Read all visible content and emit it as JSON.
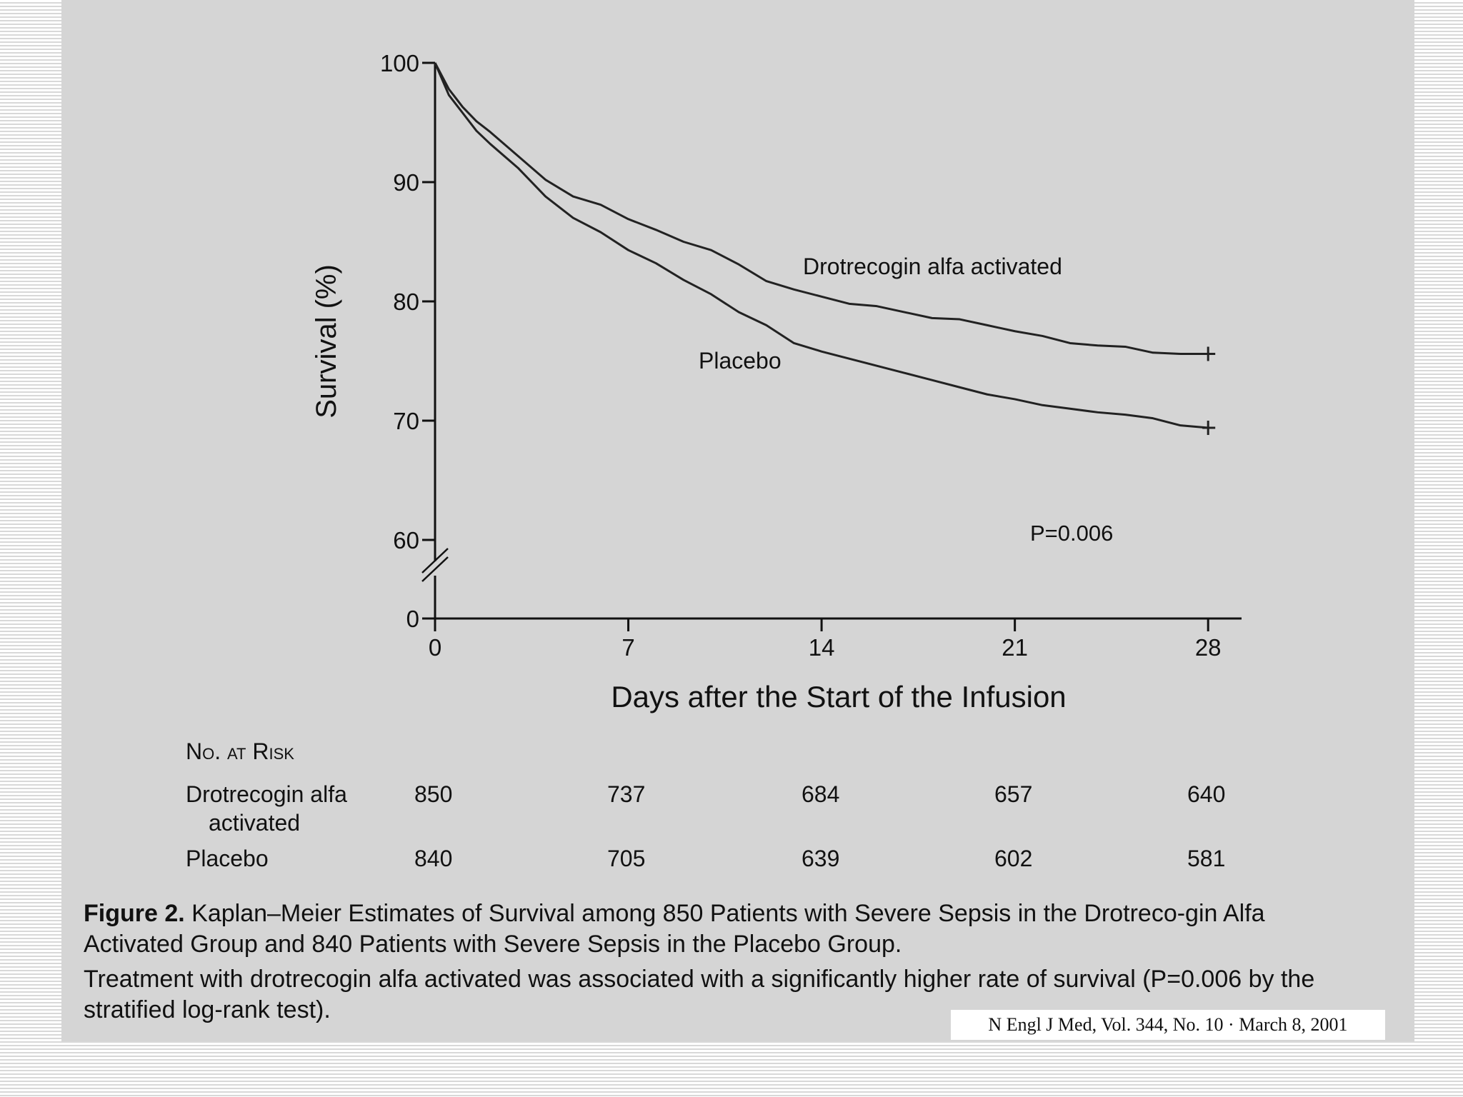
{
  "chart_data": {
    "type": "line",
    "title": "Kaplan–Meier Estimates of Survival",
    "xlabel": "Days after the Start of the Infusion",
    "ylabel": "Survival (%)",
    "x_ticks": [
      0,
      7,
      14,
      21,
      28
    ],
    "y_ticks": [
      100,
      90,
      80,
      70,
      60,
      0
    ],
    "xlim": [
      0,
      29
    ],
    "ylim": [
      0,
      100
    ],
    "axis_break": "between 0 and 60",
    "annotation": "P=0.006",
    "series": [
      {
        "name": "Drotrecogin alfa activated",
        "x": [
          0,
          0.5,
          1,
          1.5,
          2,
          3,
          4,
          5,
          6,
          7,
          8,
          9,
          10,
          11,
          12,
          13,
          14,
          15,
          16,
          17,
          18,
          19,
          20,
          21,
          22,
          23,
          24,
          25,
          26,
          27,
          28
        ],
        "y": [
          100,
          97.8,
          96.3,
          95.1,
          94.2,
          92.2,
          90.2,
          88.8,
          88.1,
          86.9,
          86.0,
          85.0,
          84.3,
          83.1,
          81.7,
          81.0,
          80.4,
          79.8,
          79.6,
          79.1,
          78.6,
          78.5,
          78.0,
          77.5,
          77.1,
          76.5,
          76.3,
          76.2,
          75.7,
          75.6,
          75.6
        ]
      },
      {
        "name": "Placebo",
        "x": [
          0,
          0.5,
          1,
          1.5,
          2,
          3,
          4,
          5,
          6,
          7,
          8,
          9,
          10,
          11,
          12,
          13,
          14,
          15,
          16,
          17,
          18,
          19,
          20,
          21,
          22,
          23,
          24,
          25,
          26,
          27,
          28
        ],
        "y": [
          100,
          97.3,
          95.8,
          94.3,
          93.2,
          91.2,
          88.8,
          87.0,
          85.8,
          84.3,
          83.2,
          81.8,
          80.6,
          79.1,
          78.0,
          76.5,
          75.8,
          75.2,
          74.6,
          74.0,
          73.4,
          72.8,
          72.2,
          71.8,
          71.3,
          71.0,
          70.7,
          70.5,
          70.2,
          69.6,
          69.4
        ]
      }
    ],
    "labels": {
      "drotrecogin": "Drotrecogin alfa activated",
      "placebo": "Placebo"
    }
  },
  "risk_table": {
    "title": "No. at Risk",
    "rows": [
      {
        "label_line1": "Drotrecogin alfa",
        "label_line2": "activated",
        "values": [
          "850",
          "737",
          "684",
          "657",
          "640"
        ]
      },
      {
        "label_line1": "Placebo",
        "label_line2": "",
        "values": [
          "840",
          "705",
          "639",
          "602",
          "581"
        ]
      }
    ]
  },
  "caption": {
    "figure_label": "Figure 2.",
    "title": "Kaplan–Meier Estimates of Survival among 850 Patients with Severe Sepsis in the Drotreco-gin Alfa Activated Group and 840 Patients with Severe Sepsis in the Placebo Group.",
    "body": "Treatment with drotrecogin alfa activated was associated with a significantly higher rate of survival (P=0.006 by the stratified log-rank test)."
  },
  "citation": "N Engl J Med, Vol. 344, No. 10 · March 8, 2001"
}
